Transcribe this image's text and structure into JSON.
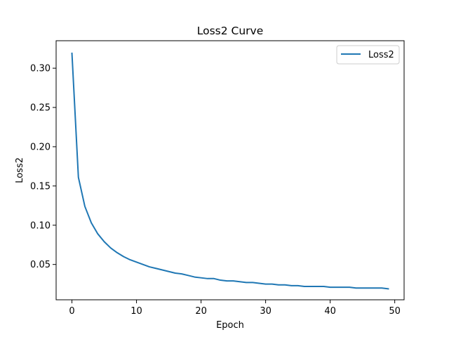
{
  "chart_data": {
    "type": "line",
    "title": "Loss2 Curve",
    "xlabel": "Epoch",
    "ylabel": "Loss2",
    "xlim": [
      -2.45,
      51.45
    ],
    "ylim": [
      0.005,
      0.335
    ],
    "xticks": [
      0,
      10,
      20,
      30,
      40,
      50
    ],
    "yticks": [
      0.05,
      0.1,
      0.15,
      0.2,
      0.25,
      0.3
    ],
    "ytick_labels": [
      "0.05",
      "0.10",
      "0.15",
      "0.20",
      "0.25",
      "0.30"
    ],
    "grid": false,
    "legend_position": "top-right",
    "series": [
      {
        "name": "Loss2",
        "color": "#1f77b4",
        "x": [
          0,
          1,
          2,
          3,
          4,
          5,
          6,
          7,
          8,
          9,
          10,
          11,
          12,
          13,
          14,
          15,
          16,
          17,
          18,
          19,
          20,
          21,
          22,
          23,
          24,
          25,
          26,
          27,
          28,
          29,
          30,
          31,
          32,
          33,
          34,
          35,
          36,
          37,
          38,
          39,
          40,
          41,
          42,
          43,
          44,
          45,
          46,
          47,
          48,
          49
        ],
        "y": [
          0.319,
          0.161,
          0.124,
          0.103,
          0.089,
          0.079,
          0.071,
          0.065,
          0.06,
          0.056,
          0.053,
          0.05,
          0.047,
          0.045,
          0.043,
          0.041,
          0.039,
          0.038,
          0.036,
          0.034,
          0.033,
          0.032,
          0.032,
          0.03,
          0.029,
          0.029,
          0.028,
          0.027,
          0.027,
          0.026,
          0.025,
          0.025,
          0.024,
          0.024,
          0.023,
          0.023,
          0.022,
          0.022,
          0.022,
          0.022,
          0.021,
          0.021,
          0.021,
          0.021,
          0.02,
          0.02,
          0.02,
          0.02,
          0.02,
          0.019
        ]
      }
    ]
  }
}
